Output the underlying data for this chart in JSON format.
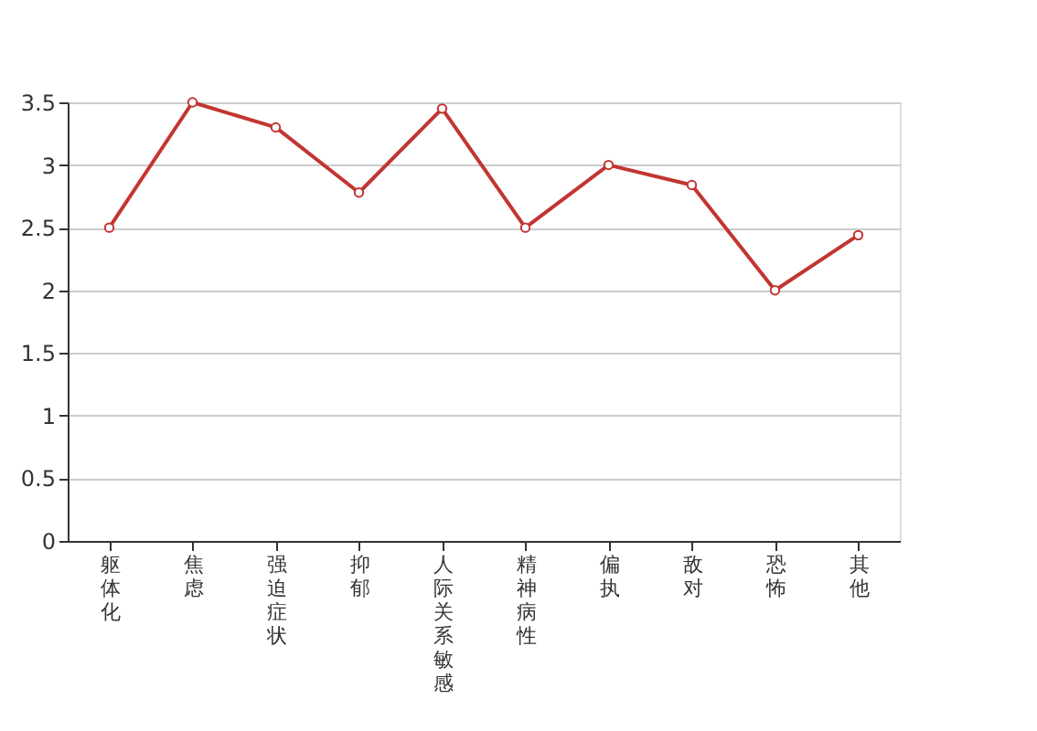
{
  "chart_data": {
    "type": "line",
    "categories": [
      "躯体化",
      "焦虑",
      "强迫症状",
      "抑郁",
      "人际关系敏感",
      "精神病性",
      "偏执",
      "敌对",
      "恐怖",
      "其他"
    ],
    "series": [
      {
        "color": "#c23531",
        "values": [
          2.5,
          3.5,
          3.3,
          2.78,
          3.45,
          2.5,
          3.0,
          2.84,
          2.0,
          2.44
        ]
      }
    ],
    "ylim": [
      0,
      3.5
    ],
    "yticks": [
      0,
      0.5,
      1,
      1.5,
      2,
      2.5,
      3,
      3.5
    ],
    "grid": "y",
    "marker": "circle",
    "line_style": "solid",
    "legend": false
  }
}
